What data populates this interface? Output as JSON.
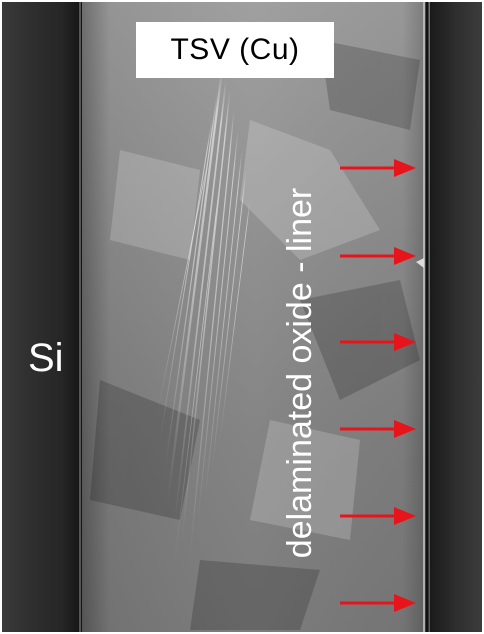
{
  "labels": {
    "title": "TSV (Cu)",
    "substrate": "Si",
    "annotation": "delaminated oxide - liner"
  },
  "colors": {
    "arrow": "#e8141b",
    "label_box": "#ffffff",
    "label_text_dark": "#000000",
    "label_text_light": "#ffffff"
  },
  "arrows": {
    "count": 6,
    "direction": "right"
  }
}
